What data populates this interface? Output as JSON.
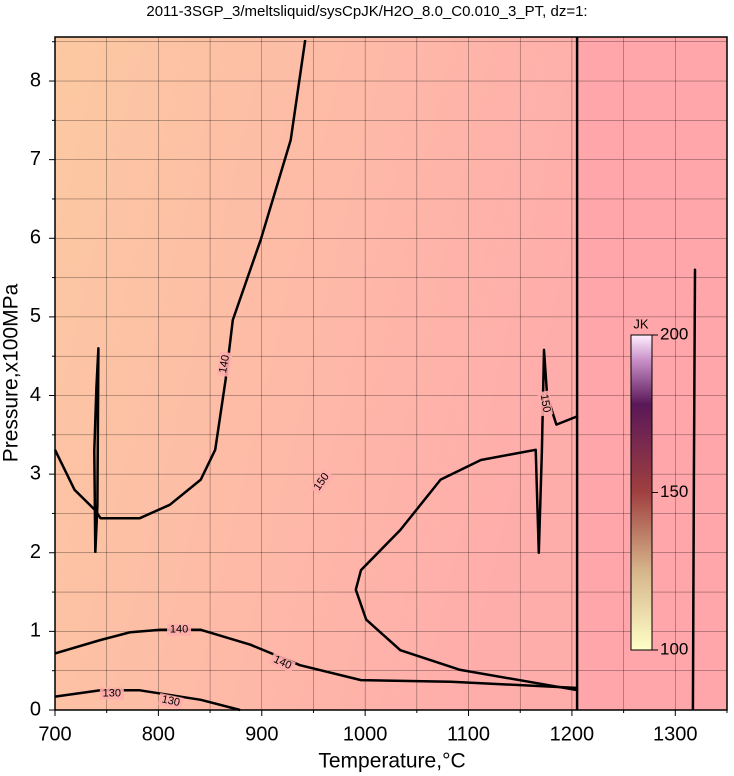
{
  "chart_data": {
    "type": "contour",
    "title": "2011-3SGP_3/meltsliquid/sysCpJK/H2O_8.0_C0.010_3_PT, dz=1:",
    "x_label": "Temperature,°C",
    "y_label": "Pressure,x100MPa",
    "xlim": [
      700,
      1350
    ],
    "ylim": [
      0,
      8.56
    ],
    "xticks": [
      700,
      800,
      900,
      1000,
      1100,
      1200,
      1300
    ],
    "yticks": [
      0,
      1,
      2,
      3,
      4,
      5,
      6,
      7,
      8
    ],
    "xminor": [
      750,
      850,
      950,
      1050,
      1150,
      1250,
      1350
    ],
    "yminor": [
      0.5,
      1.5,
      2.5,
      3.5,
      4.5,
      5.5,
      6.5,
      7.5,
      8.5
    ],
    "grid": true,
    "background": [
      "#fcc9a2",
      "#ffadab",
      "#ffa6aa"
    ],
    "contours": [
      {
        "level": 140,
        "x": [
          700,
          719,
          739,
          744,
          782,
          811,
          841,
          855,
          865,
          872,
          899,
          928,
          942
        ],
        "y": [
          3.31,
          2.8,
          2.54,
          2.44,
          2.44,
          2.61,
          2.93,
          3.31,
          4.2,
          4.96,
          5.98,
          7.25,
          8.52
        ]
      },
      {
        "level": 140,
        "x": [
          700,
          744,
          773,
          802,
          841,
          889,
          937,
          996,
          1083,
          1206
        ],
        "y": [
          0.72,
          0.89,
          0.99,
          1.02,
          1.02,
          0.83,
          0.57,
          0.38,
          0.36,
          0.28
        ]
      },
      {
        "level": 130,
        "x": [
          700,
          744,
          782,
          841,
          879
        ],
        "y": [
          0.17,
          0.25,
          0.25,
          0.13,
          0
        ]
      },
      {
        "level": 150,
        "x": [
          1206,
          1185,
          1176,
          1173,
          1171,
          1168,
          1165,
          1112,
          1073,
          1034,
          996,
          991,
          1001,
          1034,
          1092,
          1206
        ],
        "y": [
          3.74,
          3.63,
          4.0,
          4.58,
          3.3,
          2.0,
          3.31,
          3.18,
          2.93,
          2.29,
          1.78,
          1.53,
          1.15,
          0.76,
          0.51,
          0.25
        ]
      },
      {
        "x": [
          739,
          741,
          742,
          740,
          738,
          739
        ],
        "y": [
          2.0,
          2.6,
          4.6,
          4.1,
          3.3,
          2.0
        ]
      },
      {
        "x": [
          1205,
          1205
        ],
        "y": [
          0,
          8.56
        ]
      },
      {
        "x": [
          1317,
          1318,
          1319,
          1318,
          1317
        ],
        "y": [
          0,
          3.0,
          5.6,
          3.0,
          0
        ]
      }
    ],
    "contour_labels": [
      {
        "value": 140,
        "x": 864,
        "y": 4.4,
        "angle": -80
      },
      {
        "value": 140,
        "x": 820,
        "y": 1.02,
        "angle": 0
      },
      {
        "value": 140,
        "x": 920,
        "y": 0.6,
        "angle": 25
      },
      {
        "value": 130,
        "x": 755,
        "y": 0.21,
        "angle": 0
      },
      {
        "value": 130,
        "x": 812,
        "y": 0.11,
        "angle": 12
      },
      {
        "value": 150,
        "x": 958,
        "y": 2.9,
        "angle": -55
      },
      {
        "value": 150,
        "x": 1174,
        "y": 3.9,
        "angle": 80
      }
    ],
    "colorbar": {
      "label": "JK",
      "lim": [
        100,
        200
      ],
      "ticks": [
        100,
        150,
        200
      ],
      "colors": [
        [
          100,
          "#ffffc8"
        ],
        [
          125,
          "#d6b58a"
        ],
        [
          150,
          "#a04040"
        ],
        [
          178,
          "#5a1858"
        ],
        [
          192,
          "#c890c8"
        ],
        [
          200,
          "#fff0ff"
        ]
      ]
    }
  }
}
